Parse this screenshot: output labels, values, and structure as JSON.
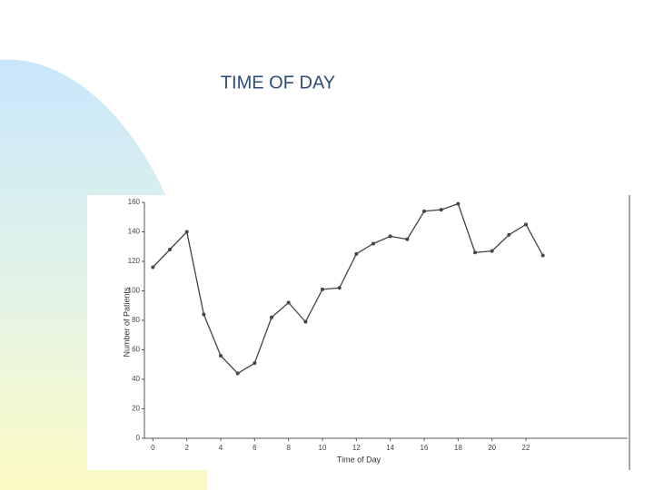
{
  "chart_data": {
    "type": "line",
    "title": "TIME OF DAY",
    "x_label": "Time of Day",
    "y_label": "Number of Patients",
    "x": [
      0,
      1,
      2,
      3,
      4,
      5,
      6,
      7,
      8,
      9,
      10,
      11,
      12,
      13,
      14,
      15,
      16,
      17,
      18,
      19,
      20,
      21,
      22,
      23
    ],
    "series": [
      {
        "name": "Patients",
        "color": "#444444",
        "values": [
          116,
          128,
          140,
          84,
          56,
          44,
          51,
          82,
          92,
          79,
          101,
          102,
          125,
          132,
          137,
          135,
          154,
          155,
          159,
          126,
          127,
          138,
          145,
          124
        ]
      }
    ],
    "xlim": [
      -0.5,
      28
    ],
    "xticks": [
      0,
      2,
      4,
      6,
      8,
      10,
      12,
      14,
      16,
      18,
      20,
      22
    ],
    "ylim": [
      0,
      160
    ],
    "yticks": [
      0,
      20,
      40,
      60,
      80,
      100,
      120,
      140,
      160
    ],
    "grid": false
  }
}
